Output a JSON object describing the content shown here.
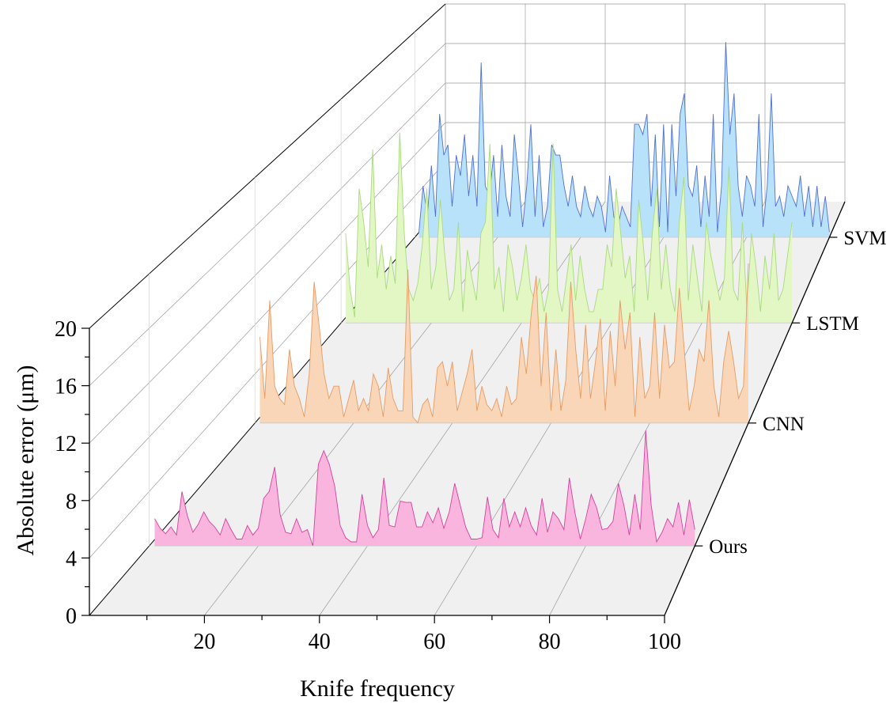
{
  "chart_data": {
    "type": "area",
    "style": "3d-waterfall",
    "title": "",
    "xlabel": "Knife frequency",
    "ylabel": "Absolute error (μm)",
    "xlim": [
      0,
      100
    ],
    "ylim": [
      0,
      20
    ],
    "xticks": [
      "20",
      "40",
      "60",
      "80",
      "100"
    ],
    "yticks": [
      "0",
      "4",
      "8",
      "12",
      "16",
      "20"
    ],
    "grid": true,
    "series": [
      {
        "name": "SVM",
        "fill": "#b8e2fa",
        "stroke": "#4f6fd6",
        "values": [
          0.5,
          5,
          2,
          7,
          2,
          12,
          8,
          9,
          3,
          8,
          6,
          10,
          4,
          8,
          3,
          17,
          5,
          4,
          8,
          2,
          9,
          4,
          2,
          10,
          6,
          1,
          5,
          11,
          2,
          8,
          1,
          3,
          9,
          8,
          8,
          5,
          3,
          6,
          3,
          2,
          5,
          3,
          2,
          4,
          3,
          0.5,
          6,
          2,
          1,
          3,
          2,
          1,
          11,
          11,
          10,
          12,
          3,
          10,
          1,
          11,
          0.5,
          11,
          4,
          12,
          14,
          5,
          4,
          7,
          1,
          6,
          2,
          12,
          0.5,
          5,
          19,
          10,
          14,
          5,
          2,
          6,
          5,
          3,
          12,
          1,
          5,
          14,
          3,
          4,
          2,
          5,
          4,
          3,
          6,
          2,
          5,
          1,
          5,
          1,
          4,
          0.5
        ]
      },
      {
        "name": "LSTM",
        "fill": "#e2f7c4",
        "stroke": "#a9da7c",
        "values": [
          8,
          3,
          0.5,
          12,
          9,
          5,
          15.5,
          4,
          7,
          3,
          6,
          3.5,
          17,
          8,
          3,
          2,
          3.5,
          7,
          12,
          3,
          5,
          11,
          6,
          2,
          3,
          9,
          1,
          6.5,
          4,
          2,
          8,
          9,
          16,
          3,
          5,
          1,
          7,
          5,
          2,
          4,
          7,
          3,
          2,
          4,
          1,
          3,
          16,
          3,
          1,
          4,
          7,
          2,
          6,
          3,
          1,
          1,
          3,
          3,
          7,
          5,
          12,
          8,
          4,
          6,
          1,
          11,
          7,
          2,
          8,
          12,
          3,
          7,
          3,
          1,
          9,
          13,
          2,
          7,
          4,
          1,
          9,
          6,
          4,
          2,
          4,
          14,
          3,
          2,
          9,
          1,
          8,
          5,
          1,
          6,
          3,
          8,
          2,
          3,
          6,
          9
        ]
      },
      {
        "name": "CNN",
        "fill": "#f9d6b8",
        "stroke": "#e89a62",
        "values": [
          7,
          2,
          10,
          3,
          2,
          1.5,
          6,
          3,
          2,
          0.5,
          4,
          11.5,
          8,
          4,
          2,
          3,
          3,
          0.5,
          2,
          3.5,
          1,
          2,
          1,
          4,
          3,
          0.5,
          4.5,
          2,
          1,
          1,
          12.5,
          0.5,
          0,
          1.5,
          2,
          0.5,
          4.5,
          5,
          3,
          5,
          1,
          2.5,
          4,
          6,
          1,
          3,
          1.5,
          1,
          2,
          0.5,
          3,
          1.5,
          2,
          7,
          4,
          9,
          12,
          3,
          9,
          1,
          6,
          1,
          3.5,
          11.5,
          6,
          2,
          8,
          2,
          5,
          8.5,
          1,
          7.5,
          3,
          10,
          6,
          9,
          0.5,
          7,
          2,
          3,
          9,
          2,
          8,
          4.5,
          5,
          11,
          6,
          1,
          3,
          6,
          5,
          10,
          3,
          0.5,
          5,
          7.5,
          5,
          2,
          3,
          13
        ]
      },
      {
        "name": "Ours",
        "fill": "#f9b5dd",
        "stroke": "#d7409f",
        "values": [
          2.0,
          1.3,
          0.9,
          1.4,
          0.8,
          4.0,
          2.2,
          1.0,
          1.6,
          2.5,
          1.8,
          1.4,
          0.8,
          2.0,
          1.2,
          0.5,
          0.5,
          1.5,
          0.8,
          1.3,
          3.5,
          4.0,
          5.8,
          2.3,
          1.0,
          0.9,
          2.0,
          1.0,
          1.2,
          0.0,
          6.0,
          7.0,
          6.0,
          4.4,
          1.5,
          0.6,
          0.3,
          0.3,
          3.8,
          1.5,
          0.6,
          1.2,
          5.0,
          1.5,
          1.4,
          3.3,
          3.2,
          3.2,
          1.4,
          1.4,
          2.5,
          1.7,
          2.8,
          1.3,
          2.5,
          4.6,
          3.0,
          1.4,
          0.5,
          0.5,
          0.6,
          3.6,
          1.2,
          0.6,
          3.5,
          1.4,
          2.5,
          1.4,
          2.8,
          1.5,
          0.8,
          3.5,
          1.0,
          2.5,
          2.0,
          1.2,
          5.0,
          2.5,
          0.5,
          2.0,
          3.8,
          2.8,
          1.2,
          1.3,
          1.8,
          4.6,
          3.0,
          0.8,
          3.8,
          1.2,
          8.5,
          3.0,
          0.3,
          1.0,
          2.0,
          1.4,
          3.2,
          0.8,
          3.4,
          1.2
        ]
      }
    ]
  }
}
